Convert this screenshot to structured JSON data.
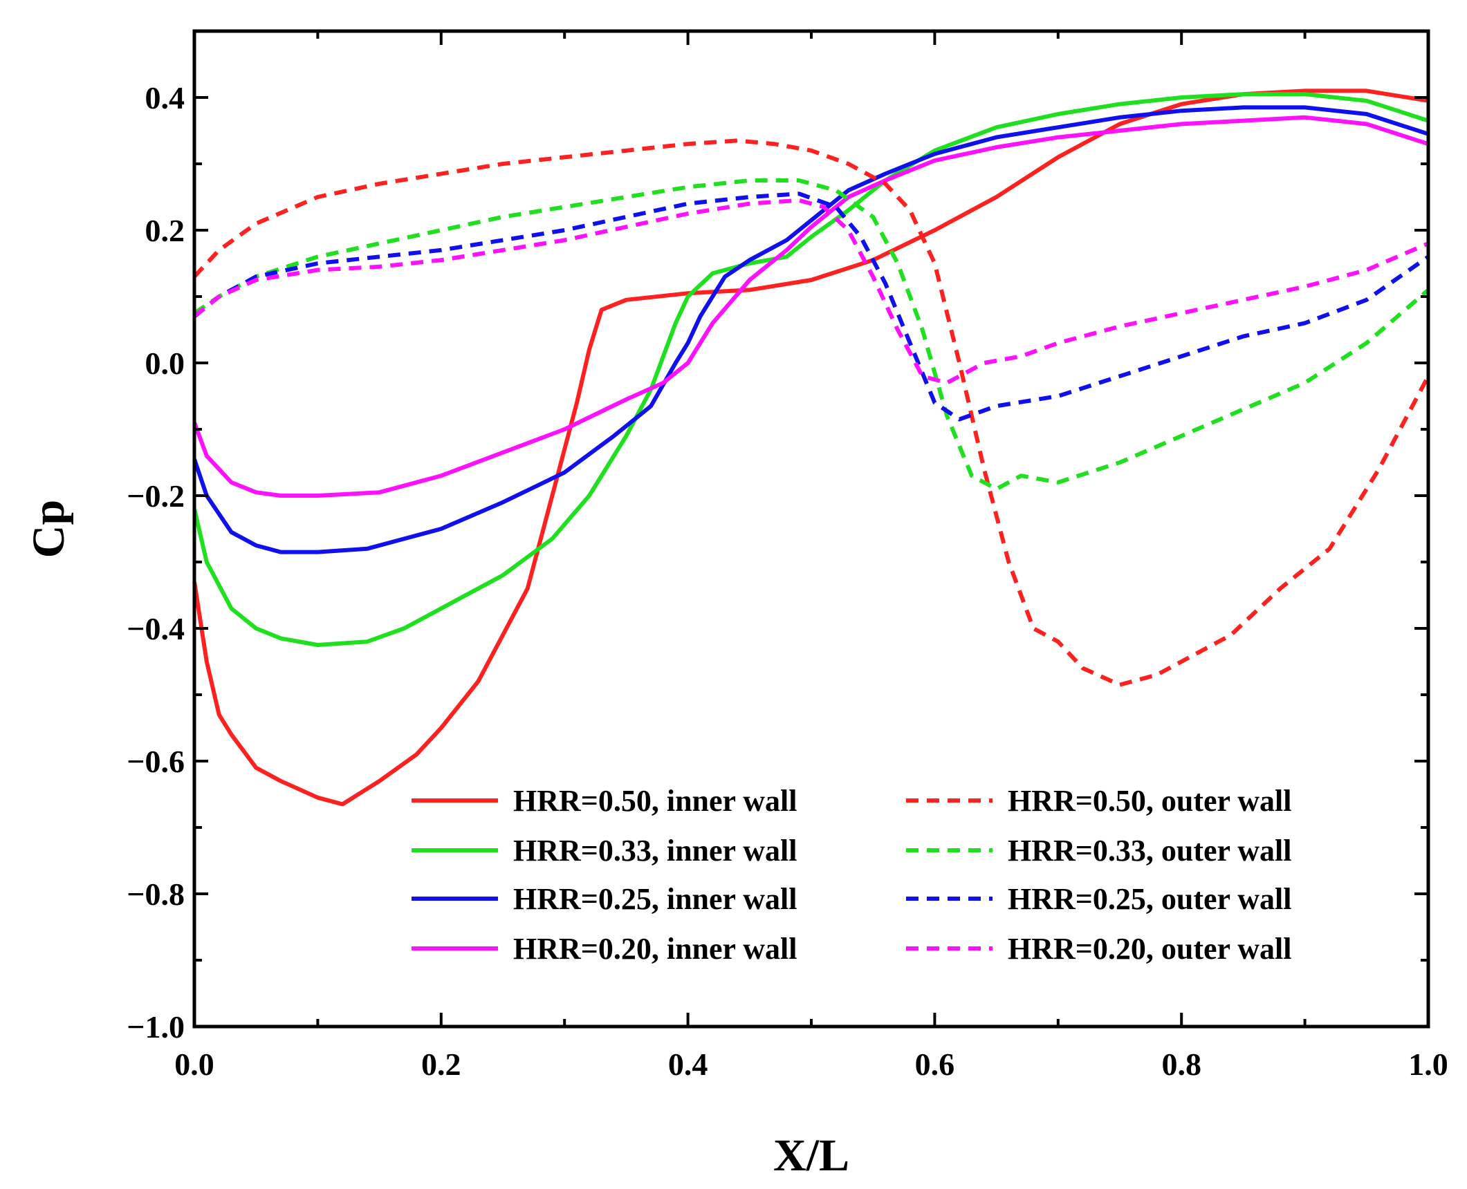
{
  "chart_data": {
    "type": "line",
    "title": "",
    "xlabel": "X/L",
    "ylabel": "Cp",
    "xlim": [
      0.0,
      1.0
    ],
    "ylim": [
      -1.0,
      0.5
    ],
    "xticks": [
      0.0,
      0.2,
      0.4,
      0.6,
      0.8,
      1.0
    ],
    "xtick_labels": [
      "0.0",
      "0.2",
      "0.4",
      "0.6",
      "0.8",
      "1.0"
    ],
    "yticks": [
      0.4,
      0.2,
      0.0,
      -0.2,
      -0.4,
      -0.6,
      -0.8,
      -1.0
    ],
    "ytick_labels": [
      "0.4",
      "0.2",
      "0.0",
      "−0.2",
      "−0.4",
      "−0.6",
      "−0.8",
      "−1.0"
    ],
    "grid": false,
    "legend_position": "bottom-right",
    "series": [
      {
        "name": "HRR=0.50, inner wall",
        "color": "#ff2020",
        "dash": "solid",
        "x": [
          0.0,
          0.01,
          0.02,
          0.03,
          0.05,
          0.07,
          0.1,
          0.12,
          0.15,
          0.18,
          0.2,
          0.23,
          0.25,
          0.27,
          0.29,
          0.31,
          0.32,
          0.33,
          0.35,
          0.4,
          0.45,
          0.5,
          0.55,
          0.6,
          0.65,
          0.7,
          0.75,
          0.8,
          0.85,
          0.9,
          0.95,
          1.0
        ],
        "y": [
          -0.33,
          -0.45,
          -0.53,
          -0.56,
          -0.61,
          -0.63,
          -0.655,
          -0.665,
          -0.63,
          -0.59,
          -0.55,
          -0.48,
          -0.41,
          -0.34,
          -0.2,
          -0.06,
          0.02,
          0.08,
          0.095,
          0.105,
          0.11,
          0.125,
          0.155,
          0.2,
          0.25,
          0.31,
          0.36,
          0.39,
          0.405,
          0.41,
          0.41,
          0.395
        ]
      },
      {
        "name": "HRR=0.33, inner wall",
        "color": "#1fe01f",
        "dash": "solid",
        "x": [
          0.0,
          0.01,
          0.03,
          0.05,
          0.07,
          0.1,
          0.14,
          0.17,
          0.2,
          0.25,
          0.29,
          0.32,
          0.35,
          0.37,
          0.39,
          0.4,
          0.42,
          0.45,
          0.48,
          0.5,
          0.53,
          0.56,
          0.6,
          0.65,
          0.7,
          0.75,
          0.8,
          0.85,
          0.9,
          0.95,
          1.0
        ],
        "y": [
          -0.22,
          -0.3,
          -0.37,
          -0.4,
          -0.415,
          -0.425,
          -0.42,
          -0.4,
          -0.37,
          -0.32,
          -0.265,
          -0.2,
          -0.11,
          -0.04,
          0.06,
          0.1,
          0.135,
          0.15,
          0.16,
          0.19,
          0.23,
          0.275,
          0.32,
          0.355,
          0.375,
          0.39,
          0.4,
          0.405,
          0.405,
          0.395,
          0.365
        ]
      },
      {
        "name": "HRR=0.25, inner wall",
        "color": "#1010ee",
        "dash": "solid",
        "x": [
          0.0,
          0.01,
          0.03,
          0.05,
          0.07,
          0.1,
          0.14,
          0.17,
          0.2,
          0.25,
          0.3,
          0.34,
          0.37,
          0.39,
          0.4,
          0.41,
          0.43,
          0.45,
          0.48,
          0.5,
          0.53,
          0.56,
          0.6,
          0.65,
          0.7,
          0.75,
          0.8,
          0.85,
          0.9,
          0.95,
          1.0
        ],
        "y": [
          -0.145,
          -0.2,
          -0.255,
          -0.275,
          -0.285,
          -0.285,
          -0.28,
          -0.265,
          -0.25,
          -0.21,
          -0.165,
          -0.11,
          -0.065,
          0.0,
          0.03,
          0.07,
          0.13,
          0.155,
          0.185,
          0.215,
          0.26,
          0.285,
          0.315,
          0.34,
          0.355,
          0.37,
          0.38,
          0.385,
          0.385,
          0.375,
          0.345
        ]
      },
      {
        "name": "HRR=0.20, inner wall",
        "color": "#ff10ff",
        "dash": "solid",
        "x": [
          0.0,
          0.01,
          0.03,
          0.05,
          0.07,
          0.1,
          0.15,
          0.18,
          0.2,
          0.25,
          0.3,
          0.35,
          0.38,
          0.4,
          0.42,
          0.45,
          0.48,
          0.5,
          0.53,
          0.56,
          0.6,
          0.65,
          0.7,
          0.75,
          0.8,
          0.85,
          0.9,
          0.95,
          1.0
        ],
        "y": [
          -0.09,
          -0.14,
          -0.18,
          -0.195,
          -0.2,
          -0.2,
          -0.195,
          -0.18,
          -0.17,
          -0.135,
          -0.1,
          -0.055,
          -0.03,
          0.0,
          0.06,
          0.125,
          0.17,
          0.205,
          0.25,
          0.275,
          0.305,
          0.325,
          0.34,
          0.35,
          0.36,
          0.365,
          0.37,
          0.36,
          0.33
        ]
      },
      {
        "name": "HRR=0.50, outer wall",
        "color": "#ff2020",
        "dash": "dashed",
        "x": [
          0.0,
          0.02,
          0.05,
          0.1,
          0.15,
          0.2,
          0.25,
          0.3,
          0.35,
          0.4,
          0.44,
          0.47,
          0.5,
          0.53,
          0.56,
          0.58,
          0.6,
          0.62,
          0.64,
          0.66,
          0.68,
          0.7,
          0.72,
          0.75,
          0.78,
          0.8,
          0.84,
          0.88,
          0.92,
          0.96,
          1.0
        ],
        "y": [
          0.13,
          0.17,
          0.21,
          0.25,
          0.27,
          0.285,
          0.3,
          0.31,
          0.32,
          0.33,
          0.335,
          0.33,
          0.32,
          0.3,
          0.27,
          0.23,
          0.15,
          0.0,
          -0.16,
          -0.3,
          -0.4,
          -0.42,
          -0.46,
          -0.485,
          -0.47,
          -0.45,
          -0.41,
          -0.34,
          -0.28,
          -0.16,
          -0.02
        ]
      },
      {
        "name": "HRR=0.33, outer wall",
        "color": "#1fe01f",
        "dash": "dashed",
        "x": [
          0.0,
          0.02,
          0.05,
          0.1,
          0.15,
          0.2,
          0.25,
          0.3,
          0.35,
          0.4,
          0.45,
          0.49,
          0.52,
          0.55,
          0.57,
          0.59,
          0.61,
          0.63,
          0.65,
          0.67,
          0.7,
          0.75,
          0.8,
          0.85,
          0.9,
          0.95,
          1.0
        ],
        "y": [
          0.075,
          0.1,
          0.13,
          0.16,
          0.18,
          0.2,
          0.22,
          0.235,
          0.25,
          0.265,
          0.275,
          0.275,
          0.26,
          0.22,
          0.15,
          0.05,
          -0.08,
          -0.17,
          -0.19,
          -0.17,
          -0.18,
          -0.15,
          -0.11,
          -0.07,
          -0.03,
          0.03,
          0.11
        ]
      },
      {
        "name": "HRR=0.25, outer wall",
        "color": "#1010ee",
        "dash": "dashed",
        "x": [
          0.0,
          0.02,
          0.05,
          0.1,
          0.15,
          0.2,
          0.25,
          0.3,
          0.35,
          0.4,
          0.45,
          0.49,
          0.52,
          0.54,
          0.56,
          0.58,
          0.6,
          0.62,
          0.65,
          0.7,
          0.75,
          0.8,
          0.85,
          0.9,
          0.95,
          1.0
        ],
        "y": [
          0.07,
          0.1,
          0.13,
          0.15,
          0.16,
          0.17,
          0.185,
          0.2,
          0.22,
          0.24,
          0.25,
          0.255,
          0.235,
          0.19,
          0.12,
          0.03,
          -0.06,
          -0.085,
          -0.065,
          -0.05,
          -0.02,
          0.01,
          0.04,
          0.06,
          0.095,
          0.16
        ]
      },
      {
        "name": "HRR=0.20, outer wall",
        "color": "#ff10ff",
        "dash": "dashed",
        "x": [
          0.0,
          0.02,
          0.05,
          0.1,
          0.15,
          0.2,
          0.25,
          0.3,
          0.35,
          0.4,
          0.45,
          0.49,
          0.51,
          0.53,
          0.55,
          0.57,
          0.59,
          0.61,
          0.64,
          0.67,
          0.7,
          0.75,
          0.8,
          0.85,
          0.9,
          0.95,
          1.0
        ],
        "y": [
          0.07,
          0.1,
          0.125,
          0.14,
          0.145,
          0.155,
          0.17,
          0.185,
          0.205,
          0.225,
          0.24,
          0.245,
          0.235,
          0.2,
          0.13,
          0.05,
          -0.02,
          -0.03,
          0.0,
          0.01,
          0.03,
          0.055,
          0.075,
          0.095,
          0.115,
          0.14,
          0.18
        ]
      }
    ]
  }
}
